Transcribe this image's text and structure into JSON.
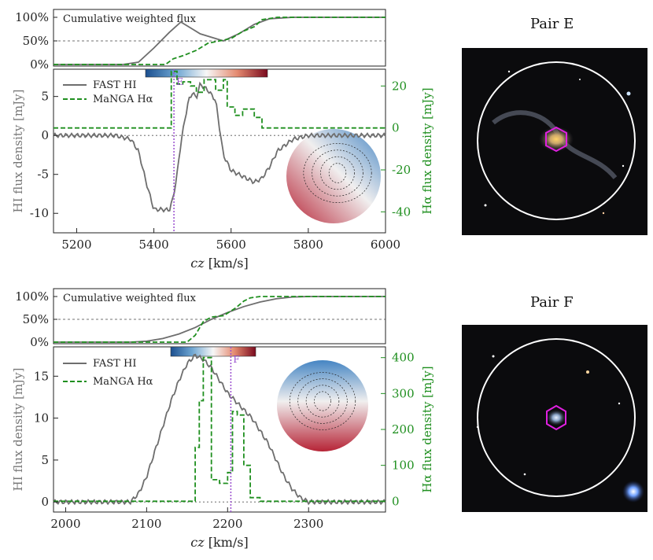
{
  "chart_data": [
    {
      "type": "line",
      "pair_label": "E",
      "marker_label": "E",
      "marker_cz": 5452,
      "xlabel_prefix": "cz",
      "xlabel_suffix": " [km/s]",
      "ylabel_left": "HI flux density [mJy]",
      "ylabel_right": "Hα flux density [mJy]",
      "xlim": [
        5140,
        6000
      ],
      "xticks": [
        5200,
        5400,
        5600,
        5800,
        6000
      ],
      "ylim_left": [
        -12.5,
        8.5
      ],
      "yticks_left": [
        -10,
        -5,
        0,
        5
      ],
      "ylim_right": [
        -50,
        28
      ],
      "yticks_right": [
        -40,
        -20,
        0,
        20
      ],
      "legend": [
        "FAST HI",
        "MaNGA Hα"
      ],
      "top_panel_title": "Cumulative weighted flux",
      "cumulative_yticks": [
        "0%",
        "50%",
        "100%"
      ],
      "series": [
        {
          "name": "FAST HI",
          "axis": "left",
          "color": "#6e6e6e",
          "x": [
            5140,
            5220,
            5300,
            5340,
            5360,
            5380,
            5400,
            5420,
            5440,
            5450,
            5460,
            5470,
            5480,
            5490,
            5500,
            5510,
            5520,
            5540,
            5560,
            5570,
            5580,
            5600,
            5620,
            5640,
            5660,
            5680,
            5700,
            5720,
            5760,
            5800,
            5840,
            5880,
            5920,
            5960,
            6000
          ],
          "values": [
            0,
            0,
            0,
            -0.5,
            -2,
            -6,
            -9.5,
            -9.5,
            -9.6,
            -8,
            -5,
            -1,
            2,
            4.5,
            5.5,
            4.8,
            6.6,
            5.8,
            4.5,
            1,
            -2.5,
            -4.5,
            -5,
            -5.5,
            -6,
            -5.5,
            -4,
            -2,
            -0.5,
            0,
            0,
            0,
            0,
            0,
            0
          ]
        },
        {
          "name": "MaNGA Hα",
          "axis": "right",
          "color": "#1f8f1f",
          "step": true,
          "x": [
            5140,
            5430,
            5445,
            5460,
            5475,
            5495,
            5510,
            5530,
            5560,
            5580,
            5590,
            5610,
            5630,
            5660,
            5680,
            5700,
            6000
          ],
          "values": [
            0,
            0,
            27,
            21,
            22,
            20,
            17,
            23,
            18,
            23,
            10,
            6,
            9,
            5,
            0,
            0,
            0
          ]
        }
      ],
      "cumulative": [
        {
          "name": "FAST HI",
          "color": "#6e6e6e",
          "x": [
            5140,
            5320,
            5360,
            5400,
            5440,
            5470,
            5500,
            5520,
            5560,
            5580,
            5620,
            5660,
            5700,
            5760,
            6000
          ],
          "values": [
            0,
            0,
            0.05,
            0.35,
            0.68,
            0.9,
            0.75,
            0.65,
            0.55,
            0.5,
            0.65,
            0.85,
            0.97,
            1,
            1
          ]
        },
        {
          "name": "MaNGA Hα",
          "color": "#1f8f1f",
          "x": [
            5140,
            5430,
            5450,
            5480,
            5510,
            5540,
            5570,
            5600,
            5630,
            5660,
            5680,
            5720,
            6000
          ],
          "values": [
            0,
            0,
            0.12,
            0.2,
            0.3,
            0.45,
            0.5,
            0.55,
            0.7,
            0.8,
            0.95,
            1,
            1
          ]
        }
      ]
    },
    {
      "type": "line",
      "pair_label": "F",
      "marker_label": "F",
      "marker_cz": 2204,
      "xlabel_prefix": "cz",
      "xlabel_suffix": " [km/s]",
      "ylabel_left": "HI flux density [mJy]",
      "ylabel_right": "Hα flux density [mJy]",
      "xlim": [
        1985,
        2395
      ],
      "xticks": [
        2000,
        2100,
        2200,
        2300
      ],
      "ylim_left": [
        -1.2,
        18.5
      ],
      "yticks_left": [
        0,
        5,
        10,
        15
      ],
      "ylim_right": [
        -30,
        430
      ],
      "yticks_right": [
        0,
        100,
        200,
        300,
        400
      ],
      "legend": [
        "FAST HI",
        "MaNGA Hα"
      ],
      "top_panel_title": "Cumulative weighted flux",
      "cumulative_yticks": [
        "0%",
        "50%",
        "100%"
      ],
      "series": [
        {
          "name": "FAST HI",
          "axis": "left",
          "color": "#6e6e6e",
          "x": [
            1985,
            2040,
            2080,
            2090,
            2100,
            2110,
            2120,
            2130,
            2140,
            2150,
            2160,
            2170,
            2180,
            2190,
            2200,
            2210,
            2220,
            2230,
            2240,
            2250,
            2260,
            2270,
            2280,
            2290,
            2300,
            2320,
            2360,
            2395
          ],
          "values": [
            0,
            0,
            0,
            1,
            3,
            6,
            9,
            12,
            14.5,
            16.5,
            17.5,
            17,
            16,
            14.5,
            13,
            12,
            11,
            10,
            8.5,
            7,
            5,
            3,
            1.5,
            0.5,
            0,
            0,
            0,
            0
          ]
        },
        {
          "name": "MaNGA Hα",
          "axis": "right",
          "color": "#1f8f1f",
          "step": true,
          "x": [
            1985,
            2155,
            2160,
            2165,
            2170,
            2180,
            2190,
            2200,
            2206,
            2212,
            2220,
            2228,
            2240,
            2395
          ],
          "values": [
            0,
            0,
            150,
            280,
            400,
            60,
            50,
            80,
            250,
            240,
            100,
            10,
            0,
            0
          ]
        }
      ],
      "cumulative": [
        {
          "name": "FAST HI",
          "color": "#6e6e6e",
          "x": [
            1985,
            2080,
            2100,
            2120,
            2140,
            2160,
            2180,
            2200,
            2220,
            2240,
            2260,
            2280,
            2300,
            2395
          ],
          "values": [
            0,
            0,
            0.02,
            0.08,
            0.18,
            0.32,
            0.5,
            0.65,
            0.78,
            0.88,
            0.95,
            0.99,
            1,
            1
          ]
        },
        {
          "name": "MaNGA Hα",
          "color": "#1f8f1f",
          "x": [
            1985,
            2150,
            2160,
            2170,
            2180,
            2195,
            2210,
            2220,
            2228,
            2240,
            2395
          ],
          "values": [
            0,
            0,
            0.15,
            0.45,
            0.55,
            0.58,
            0.75,
            0.9,
            0.97,
            1,
            1
          ]
        }
      ]
    }
  ],
  "images": {
    "pair_e_title": "Pair E",
    "pair_f_title": "Pair F"
  }
}
